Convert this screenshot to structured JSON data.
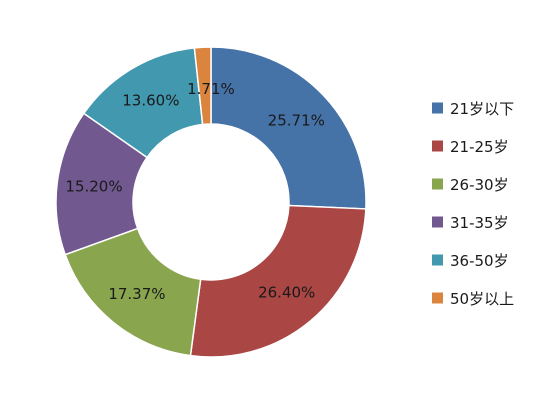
{
  "chart_data": {
    "type": "pie",
    "donut": true,
    "title": "",
    "legend_position": "right",
    "categories": [
      "21岁以下",
      "21-25岁",
      "26-30岁",
      "31-35岁",
      "36-50岁",
      "50岁以上"
    ],
    "values": [
      25.71,
      26.4,
      17.37,
      15.2,
      13.6,
      1.71
    ],
    "data_labels": [
      "25.71%",
      "26.40%",
      "17.37%",
      "15.20%",
      "13.60%",
      "1.71%"
    ],
    "colors": [
      "#4572a7",
      "#aa4643",
      "#89a54e",
      "#71588f",
      "#4198af",
      "#db843d"
    ]
  }
}
